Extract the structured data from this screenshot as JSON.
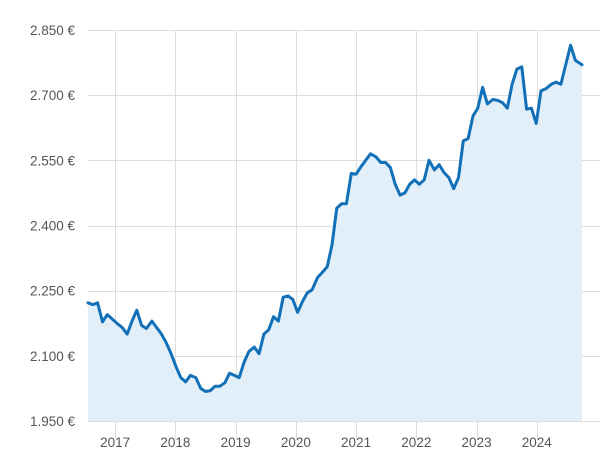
{
  "chart_data": {
    "type": "area",
    "title": "",
    "xlabel": "",
    "ylabel": "",
    "ylim": [
      1950,
      2850
    ],
    "xlim": [
      2016.55,
      2024.75
    ],
    "y_ticks": [
      1950,
      2100,
      2250,
      2400,
      2550,
      2700,
      2850
    ],
    "y_tick_labels": [
      "1.950 €",
      "2.100 €",
      "2.250 €",
      "2.400 €",
      "2.550 €",
      "2.700 €",
      "2.850 €"
    ],
    "x_ticks": [
      2017,
      2018,
      2019,
      2020,
      2021,
      2022,
      2023,
      2024
    ],
    "x_tick_labels": [
      "2017",
      "2018",
      "2019",
      "2020",
      "2021",
      "2022",
      "2023",
      "2024"
    ],
    "grid": true,
    "legend": "none",
    "colors": {
      "line": "#1270b8",
      "fill": "#e3eff8",
      "grid": "#dedede",
      "text": "#555555"
    },
    "series": [
      {
        "x": [
          2016.55,
          2016.63,
          2016.71,
          2016.79,
          2016.87,
          2016.95,
          2017.03,
          2017.12,
          2017.2,
          2017.28,
          2017.36,
          2017.44,
          2017.52,
          2017.61,
          2017.69,
          2017.77,
          2017.85,
          2017.93,
          2018.01,
          2018.09,
          2018.17,
          2018.25,
          2018.34,
          2018.42,
          2018.5,
          2018.58,
          2018.66,
          2018.74,
          2018.82,
          2018.9,
          2018.98,
          2019.06,
          2019.14,
          2019.22,
          2019.31,
          2019.39,
          2019.47,
          2019.55,
          2019.63,
          2019.71,
          2019.79,
          2019.87,
          2019.95,
          2020.03,
          2020.11,
          2020.19,
          2020.27,
          2020.36,
          2020.44,
          2020.52,
          2020.6,
          2020.68,
          2020.76,
          2020.84,
          2020.92,
          2021.0,
          2021.08,
          2021.16,
          2021.24,
          2021.33,
          2021.41,
          2021.49,
          2021.57,
          2021.65,
          2021.73,
          2021.81,
          2021.89,
          2021.97,
          2022.05,
          2022.13,
          2022.21,
          2022.3,
          2022.38,
          2022.46,
          2022.54,
          2022.62,
          2022.7,
          2022.78,
          2022.86,
          2022.94,
          2023.02,
          2023.1,
          2023.18,
          2023.27,
          2023.35,
          2023.43,
          2023.51,
          2023.59,
          2023.67,
          2023.75,
          2023.83,
          2023.91,
          2023.99,
          2024.07,
          2024.15,
          2024.24,
          2024.32,
          2024.4,
          2024.48,
          2024.56,
          2024.64,
          2024.75
        ],
        "y": [
          2222,
          2218,
          2222,
          2178,
          2195,
          2185,
          2175,
          2165,
          2150,
          2180,
          2205,
          2170,
          2163,
          2180,
          2165,
          2150,
          2130,
          2105,
          2075,
          2050,
          2040,
          2055,
          2050,
          2025,
          2018,
          2020,
          2030,
          2030,
          2038,
          2060,
          2055,
          2050,
          2085,
          2110,
          2120,
          2105,
          2150,
          2160,
          2190,
          2180,
          2235,
          2238,
          2230,
          2200,
          2225,
          2245,
          2252,
          2280,
          2292,
          2305,
          2355,
          2440,
          2450,
          2450,
          2520,
          2518,
          2535,
          2550,
          2565,
          2558,
          2545,
          2545,
          2533,
          2495,
          2470,
          2475,
          2495,
          2505,
          2495,
          2505,
          2550,
          2528,
          2540,
          2522,
          2510,
          2485,
          2510,
          2595,
          2600,
          2652,
          2670,
          2718,
          2680,
          2690,
          2688,
          2683,
          2670,
          2725,
          2760,
          2765,
          2668,
          2670,
          2635,
          2710,
          2715,
          2725,
          2730,
          2725,
          2770,
          2815,
          2780,
          2770
        ]
      }
    ]
  }
}
